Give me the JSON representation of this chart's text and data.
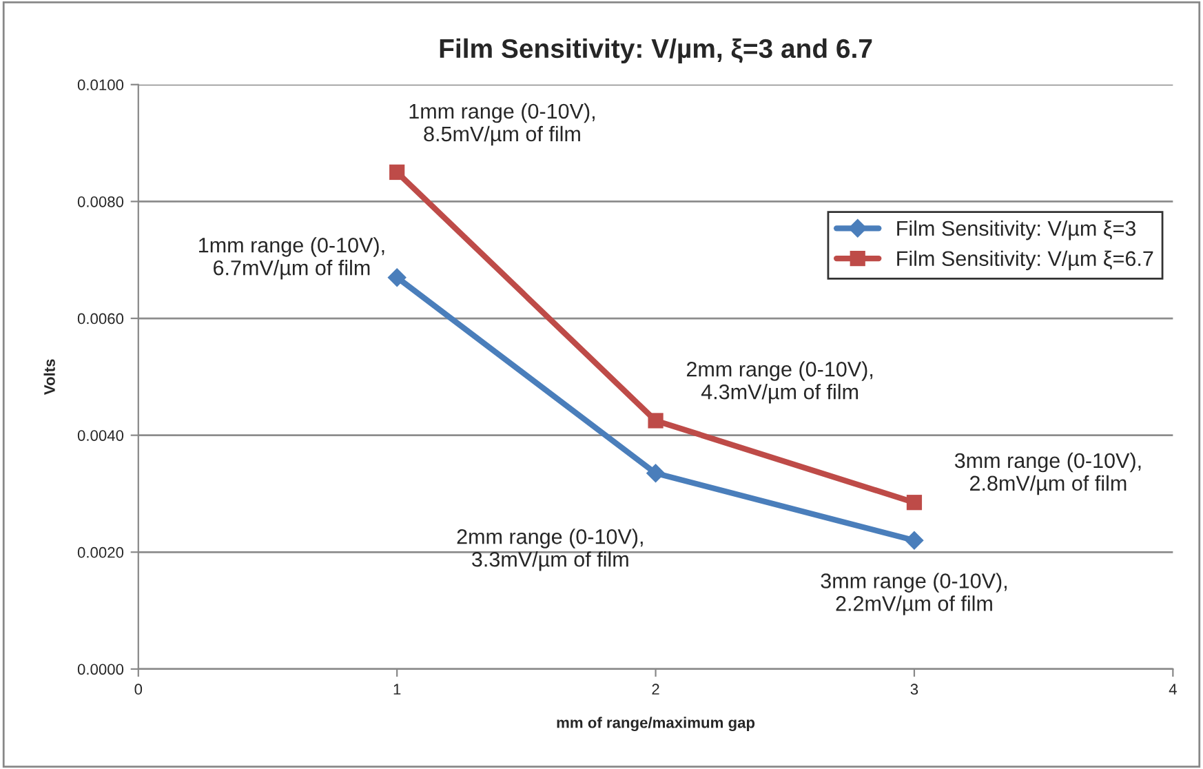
{
  "chart_data": {
    "type": "line",
    "title": "Film Sensitivity: V/µm, ξ=3 and 6.7",
    "xlabel": "mm of range/maximum gap",
    "ylabel": "Volts",
    "x": [
      1,
      2,
      3
    ],
    "series": [
      {
        "name": "Film Sensitivity: V/µm ξ=3",
        "color": "#4a7ebb",
        "marker": "diamond",
        "values": [
          0.0067,
          0.00335,
          0.0022
        ]
      },
      {
        "name": "Film Sensitivity: V/µm ξ=6.7",
        "color": "#be4b48",
        "marker": "square",
        "values": [
          0.0085,
          0.00425,
          0.00285
        ]
      }
    ],
    "xlim": [
      0,
      4
    ],
    "xticks": [
      0,
      1,
      2,
      3,
      4
    ],
    "ylim": [
      0,
      0.01
    ],
    "yticks": [
      {
        "value": 0,
        "label": "0.0000"
      },
      {
        "value": 0.002,
        "label": "0.0020"
      },
      {
        "value": 0.004,
        "label": "0.0040"
      },
      {
        "value": 0.006,
        "label": "0.0060"
      },
      {
        "value": 0.008,
        "label": "0.0080"
      },
      {
        "value": 0.01,
        "label": "0.0100"
      }
    ],
    "grid": "y",
    "legend": "top right",
    "line_style": "solid",
    "annotations": [
      {
        "text": "1mm range (0-10V),\n6.7mV/µm of film",
        "x": 1,
        "y": 0.0067
      },
      {
        "text": "2mm range (0-10V),\n3.3mV/µm of film",
        "x": 2,
        "y": 0.00335
      },
      {
        "text": "3mm range (0-10V),\n2.2mV/µm of film",
        "x": 3,
        "y": 0.0022
      },
      {
        "text": "1mm range (0-10V),\n8.5mV/µm of film",
        "x": 1,
        "y": 0.0085
      },
      {
        "text": "2mm range (0-10V),\n4.3mV/µm of film",
        "x": 2,
        "y": 0.00425
      },
      {
        "text": "3mm range (0-10V),\n2.8mV/µm of film",
        "x": 3,
        "y": 0.00285
      }
    ]
  }
}
